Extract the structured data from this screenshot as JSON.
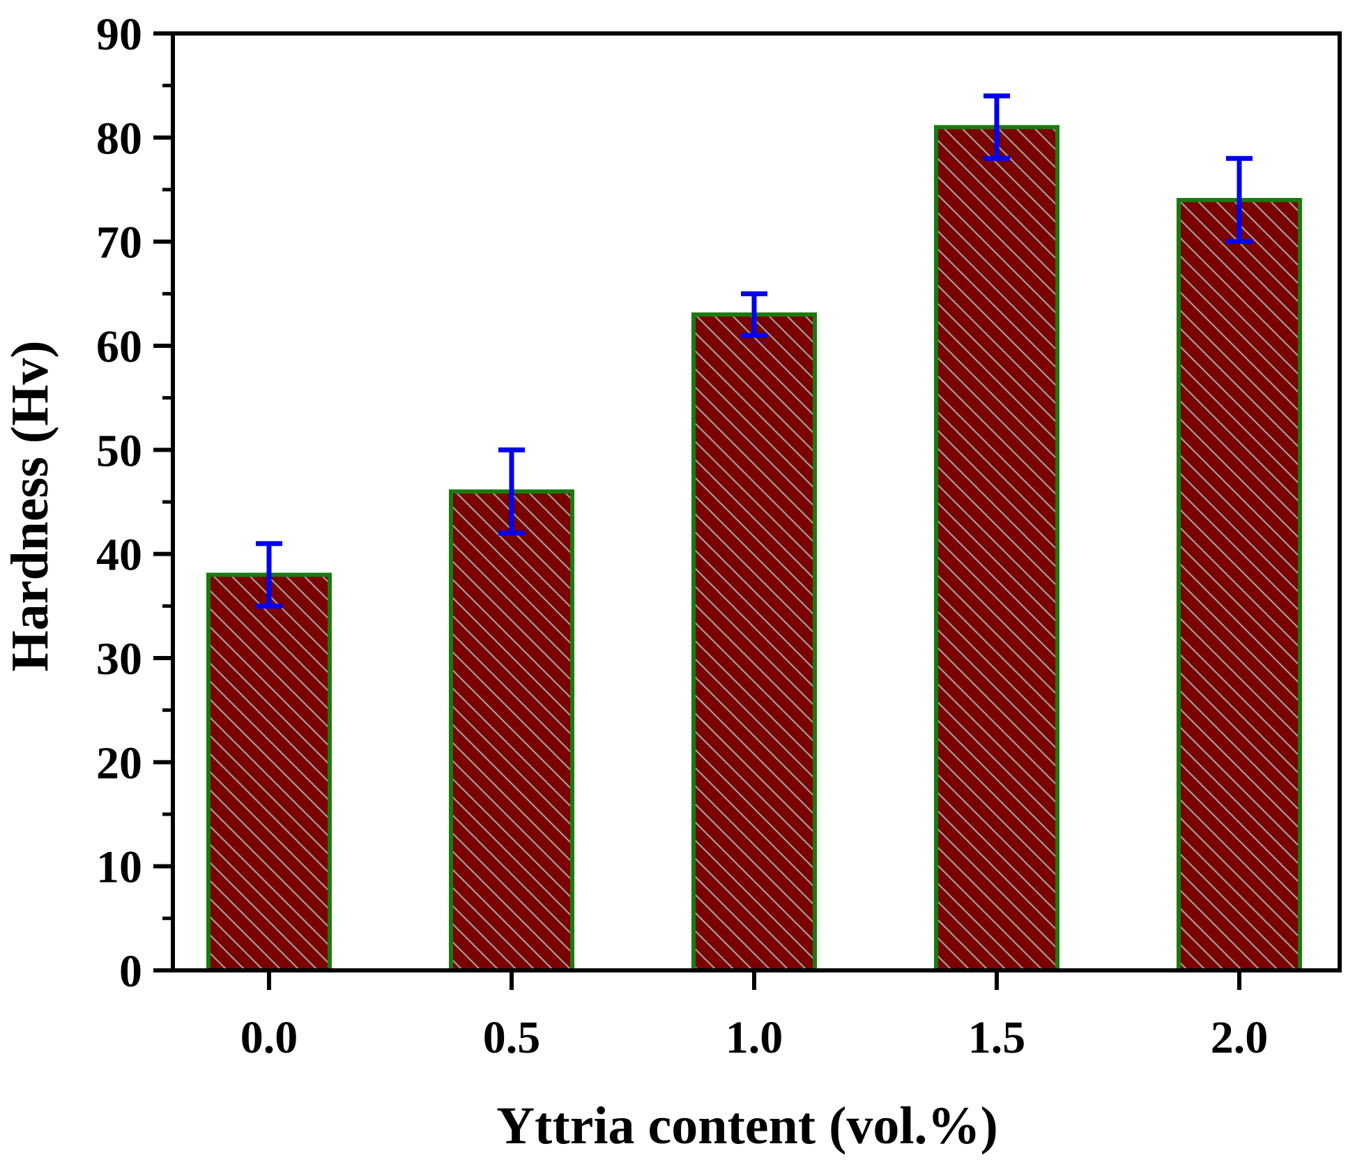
{
  "chart_data": {
    "type": "bar",
    "title": "",
    "xlabel": "Yttria content (vol.%)",
    "ylabel": "Hardness (Hv)",
    "categories": [
      "0.0",
      "0.5",
      "1.0",
      "1.5",
      "2.0"
    ],
    "values": [
      38,
      46,
      63,
      81,
      74
    ],
    "errors": [
      3,
      4,
      2,
      3,
      4
    ],
    "ylim": [
      0,
      90
    ],
    "yticks": [
      0,
      10,
      20,
      30,
      40,
      50,
      60,
      70,
      80,
      90
    ],
    "ytick_labels": [
      "0",
      "10",
      "20",
      "30",
      "40",
      "50",
      "60",
      "70",
      "80",
      "90"
    ],
    "grid": false,
    "legend": "none",
    "colors": {
      "bar_fill": "#7b0000",
      "bar_edge": "#1a7a0f",
      "hatch": "#a0a0a0",
      "error_bar": "#0000ee",
      "axis": "#000000"
    }
  }
}
